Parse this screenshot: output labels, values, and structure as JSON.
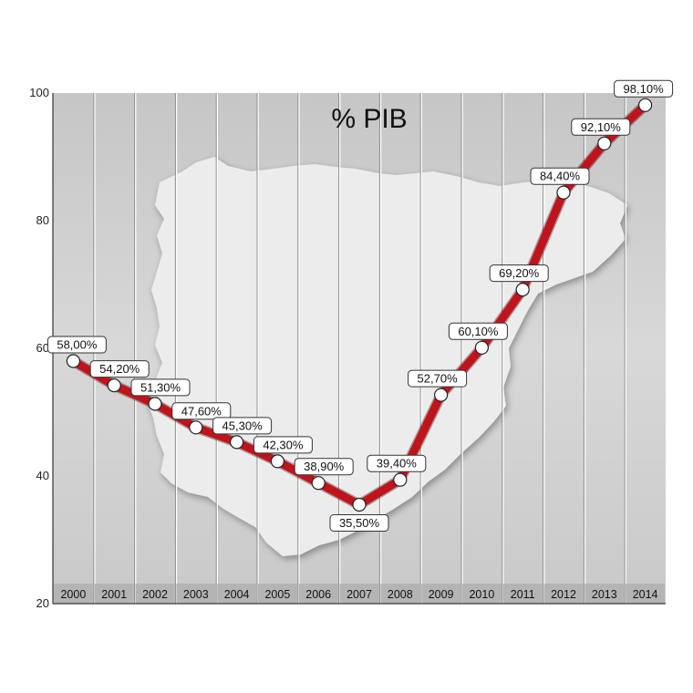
{
  "chart_data": {
    "type": "line",
    "title": "% PIB",
    "xlabel": "",
    "ylabel": "",
    "x": [
      "2000",
      "2001",
      "2002",
      "2003",
      "2004",
      "2005",
      "2006",
      "2007",
      "2008",
      "2009",
      "2010",
      "2011",
      "2012",
      "2013",
      "2014"
    ],
    "series": [
      {
        "values": [
          58.0,
          54.2,
          51.3,
          47.6,
          45.3,
          42.3,
          38.9,
          35.5,
          39.4,
          52.7,
          60.1,
          69.2,
          84.4,
          92.1,
          98.1
        ],
        "labels": [
          "58,00%",
          "54,20%",
          "51,30%",
          "47,60%",
          "45,30%",
          "42,30%",
          "38,90%",
          "35,50%",
          "39,40%",
          "52,70%",
          "60,10%",
          "69,20%",
          "84,40%",
          "92,10%",
          "98,10%"
        ],
        "color": "#c0141c"
      }
    ],
    "yticks": [
      "20",
      "40",
      "60",
      "80",
      "100"
    ],
    "ylim": [
      20,
      100
    ],
    "grid": "vertical",
    "background_map": "iberian-peninsula-silhouette"
  }
}
